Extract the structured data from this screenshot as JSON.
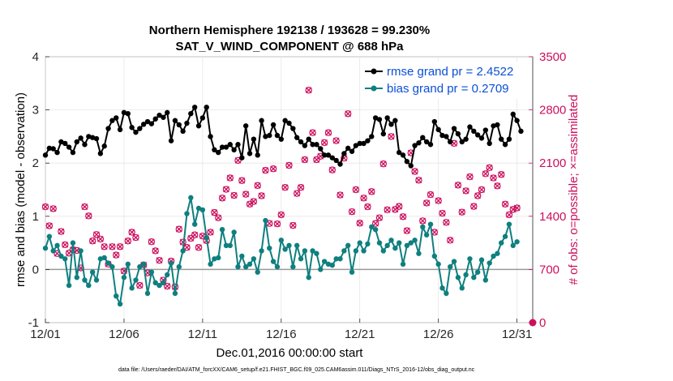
{
  "chart_data": {
    "type": "line",
    "title": "Northern Hemisphere 192138 / 193628 = 99.230%",
    "subtitle": "SAT_V_WIND_COMPONENT @ 688 hPa",
    "xlabel": "Dec.01,2016 00:00:00 start",
    "ylabel_left": "rmse and bias (model - observation)",
    "ylabel_right": "# of obs: o=possible; ×=assimilated",
    "x_range": [
      1,
      32
    ],
    "x_ticks": [
      1,
      6,
      11,
      16,
      21,
      26,
      31
    ],
    "x_tick_labels": [
      "12/01",
      "12/06",
      "12/11",
      "12/16",
      "12/21",
      "12/26",
      "12/31"
    ],
    "ylim_left": [
      -1,
      4
    ],
    "y_ticks_left": [
      -1,
      0,
      1,
      2,
      3,
      4
    ],
    "y_tick_labels_left": [
      "-1",
      "0",
      "1",
      "2",
      "3",
      "4"
    ],
    "ylim_right": [
      0,
      3500
    ],
    "y_ticks_right": [
      0,
      700,
      1400,
      2100,
      2800,
      3500
    ],
    "y_tick_labels_right": [
      "0",
      "700",
      "1400",
      "2100",
      "2800",
      "3500"
    ],
    "legend": [
      "rmse grand pr = 2.4522",
      "bias grand pr = 0.2709"
    ],
    "legend_position": "top-right",
    "footer": "data file: /Users/raeder/DAI/ATM_forcXX/CAM6_setup/f.e21.FHIST_BGC.f09_025.CAM6assim.011/Diags_NTrS_2016-12/obs_diag_output.nc",
    "colors": {
      "rmse": "#000000",
      "bias": "#0f7f7f",
      "obs": "#cc0f5e",
      "legend_text": "#0b4fd6",
      "zero_line": "#9a9a9a"
    },
    "series": [
      {
        "name": "rmse",
        "x_start": 1.0,
        "x_step": 0.25,
        "values": [
          2.15,
          2.28,
          2.27,
          2.2,
          2.4,
          2.37,
          2.3,
          2.2,
          2.4,
          2.47,
          2.35,
          2.5,
          2.48,
          2.46,
          2.18,
          2.32,
          2.65,
          2.8,
          2.85,
          2.63,
          2.95,
          2.93,
          2.67,
          2.58,
          2.65,
          2.73,
          2.78,
          2.74,
          2.83,
          2.9,
          2.86,
          2.95,
          2.42,
          2.8,
          2.72,
          2.6,
          2.75,
          2.93,
          3.05,
          2.7,
          2.85,
          3.05,
          2.5,
          2.25,
          2.2,
          2.3,
          2.3,
          2.35,
          2.25,
          2.35,
          2.1,
          2.7,
          2.18,
          2.45,
          2.15,
          2.8,
          2.5,
          2.52,
          2.72,
          2.52,
          2.45,
          2.8,
          2.75,
          2.65,
          2.48,
          2.4,
          2.33,
          2.45,
          2.35,
          2.35,
          2.27,
          2.15,
          2.15,
          2.1,
          2.05,
          1.98,
          2.18,
          2.28,
          2.22,
          2.33,
          2.37,
          2.37,
          2.42,
          2.5,
          2.85,
          2.82,
          2.55,
          2.85,
          2.73,
          2.8,
          2.2,
          2.15,
          2.03,
          1.95,
          2.33,
          2.38,
          2.48,
          2.4,
          2.35,
          2.78,
          2.63,
          2.52,
          2.5,
          2.4,
          2.65,
          2.55,
          2.4,
          2.45,
          2.68,
          2.6,
          2.53,
          2.47,
          2.62,
          2.37,
          2.7,
          2.72,
          2.45,
          2.35,
          2.45,
          2.92,
          2.8,
          2.6
        ]
      },
      {
        "name": "bias",
        "x_start": 1.0,
        "x_step": 0.25,
        "values": [
          0.4,
          0.62,
          0.35,
          0.45,
          0.25,
          0.2,
          -0.3,
          0.5,
          -0.15,
          0.35,
          -0.2,
          -0.3,
          -0.05,
          -0.2,
          0.2,
          0.22,
          0.12,
          0.05,
          -0.5,
          -0.65,
          -0.15,
          0.1,
          -0.35,
          -0.2,
          0.05,
          0.1,
          -0.45,
          -0.05,
          -0.25,
          -0.3,
          -0.25,
          -0.1,
          0.12,
          -0.45,
          0.05,
          0.35,
          1.05,
          1.35,
          0.85,
          1.15,
          1.12,
          0.6,
          0.1,
          0.2,
          0.22,
          0.75,
          0.45,
          0.45,
          0.7,
          0.05,
          0.25,
          0.05,
          0.1,
          0.2,
          -0.05,
          0.35,
          0.92,
          0.4,
          0.15,
          0.05,
          0.55,
          0.38,
          0.45,
          0.05,
          0.45,
          0.2,
          0.35,
          -0.15,
          0.35,
          0.3,
          0.0,
          0.15,
          0.1,
          0.08,
          0.2,
          0.2,
          0.35,
          0.45,
          -0.05,
          0.35,
          0.5,
          0.35,
          0.48,
          0.8,
          0.75,
          0.5,
          0.35,
          0.45,
          0.55,
          0.4,
          0.5,
          0.1,
          0.45,
          0.5,
          0.55,
          0.3,
          0.8,
          0.65,
          0.85,
          0.25,
          0.1,
          -0.35,
          -0.45,
          0.05,
          0.15,
          -0.15,
          -0.35,
          -0.1,
          0.2,
          -0.15,
          -0.05,
          0.18,
          -0.2,
          0.12,
          0.25,
          0.3,
          0.5,
          0.62,
          0.85,
          0.45,
          0.52
        ]
      },
      {
        "name": "obs (possible/assimilated)",
        "axis": "right",
        "x_start": 1.0,
        "x_step": 0.25,
        "values": [
          1525,
          1275,
          1500,
          910,
          1200,
          1025,
          915,
          960,
          950,
          720,
          1525,
          1405,
          1075,
          1160,
          1100,
          1000,
          770,
          1000,
          890,
          1000,
          680,
          1075,
          1190,
          1120,
          490,
          760,
          655,
          1065,
          945,
          820,
          560,
          480,
          810,
          470,
          1230,
          1060,
          990,
          1110,
          1155,
          990,
          1140,
          1080,
          1190,
          1450,
          1380,
          1640,
          1755,
          1905,
          1675,
          2135,
          1870,
          1690,
          1560,
          1595,
          1805,
          1670,
          2005,
          1305,
          2025,
          1300,
          1420,
          1780,
          2070,
          1280,
          1700,
          1780,
          2145,
          3060,
          2500,
          2145,
          2190,
          2370,
          2500,
          2010,
          2395,
          1680,
          2165,
          2750,
          1460,
          1750,
          1310,
          1640,
          1525,
          1725,
          1305,
          1380,
          2090,
          1485,
          2450,
          1490,
          1530,
          1395,
          1210,
          2235,
          1990,
          1875,
          1340,
          1575,
          1685,
          1190,
          1605,
          1440,
          1320,
          1085,
          2360,
          1810,
          1455,
          1735,
          1920,
          1530,
          1670,
          1750,
          1960,
          2040,
          1905,
          1800,
          1950,
          1560,
          1420,
          1490,
          1510
        ]
      }
    ]
  }
}
